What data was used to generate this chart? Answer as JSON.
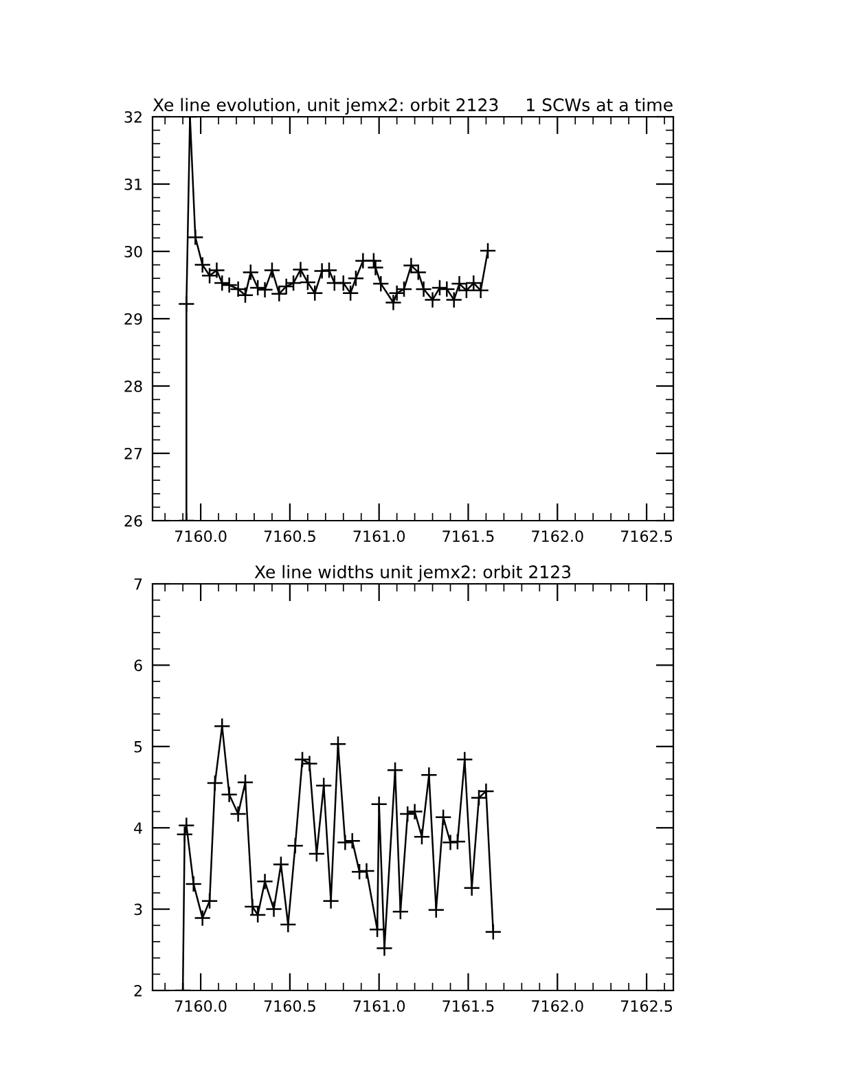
{
  "chart_data": [
    {
      "type": "line",
      "title": "Xe line evolution, unit jemx2: orbit 2123",
      "subtitle": "1 SCWs at a time",
      "marker": "cross",
      "line_style": "solid",
      "grid": false,
      "xlim": [
        7159.73,
        7162.65
      ],
      "xticks": [
        {
          "value": 7160,
          "label": "7160.0"
        },
        {
          "value": 7160.5,
          "label": "7160.5"
        },
        {
          "value": 7161,
          "label": "7161.0"
        },
        {
          "value": 7161.5,
          "label": "7161.5"
        },
        {
          "value": 7162,
          "label": "7162.0"
        },
        {
          "value": 7162.5,
          "label": "7162.5"
        }
      ],
      "ylim": [
        26,
        32
      ],
      "yticks": [
        26,
        27,
        28,
        29,
        30,
        31,
        32
      ],
      "series": [
        {
          "color": "#000000",
          "x": [
            7159.92,
            7159.92,
            7159.94,
            7159.97,
            7160.01,
            7160.05,
            7160.09,
            7160.12,
            7160.16,
            7160.21,
            7160.25,
            7160.28,
            7160.32,
            7160.36,
            7160.4,
            7160.44,
            7160.48,
            7160.52,
            7160.56,
            7160.6,
            7160.64,
            7160.68,
            7160.72,
            7160.75,
            7160.8,
            7160.84,
            7160.87,
            7160.91,
            7160.97,
            7160.98,
            7161.01,
            7161.08,
            7161.1,
            7161.14,
            7161.18,
            7161.22,
            7161.25,
            7161.3,
            7161.34,
            7161.38,
            7161.42,
            7161.45,
            7161.49,
            7161.53,
            7161.57,
            7161.61
          ],
          "values": [
            26,
            29.22,
            32,
            30.21,
            29.8,
            29.64,
            29.72,
            29.53,
            29.5,
            29.44,
            29.35,
            29.69,
            29.46,
            29.43,
            29.72,
            29.37,
            29.48,
            29.53,
            29.73,
            29.54,
            29.38,
            29.71,
            29.72,
            29.53,
            29.53,
            29.38,
            29.6,
            29.86,
            29.86,
            29.76,
            29.52,
            29.24,
            29.38,
            29.44,
            29.79,
            29.69,
            29.44,
            29.28,
            29.46,
            29.44,
            29.28,
            29.52,
            29.42,
            29.53,
            29.42,
            30.01
          ]
        }
      ]
    },
    {
      "type": "line",
      "title": "Xe line widths unit jemx2: orbit 2123",
      "marker": "cross",
      "line_style": "solid",
      "grid": false,
      "xlim": [
        7159.73,
        7162.65
      ],
      "xticks": [
        {
          "value": 7160,
          "label": "7160.0"
        },
        {
          "value": 7160.5,
          "label": "7160.5"
        },
        {
          "value": 7161,
          "label": "7161.0"
        },
        {
          "value": 7161.5,
          "label": "7161.5"
        },
        {
          "value": 7162,
          "label": "7162.0"
        },
        {
          "value": 7162.5,
          "label": "7162.5"
        }
      ],
      "ylim": [
        2,
        7
      ],
      "yticks": [
        2,
        3,
        4,
        5,
        6,
        7
      ],
      "series": [
        {
          "color": "#000000",
          "x": [
            7159.9,
            7159.91,
            7159.92,
            7159.96,
            7160.01,
            7160.05,
            7160.08,
            7160.12,
            7160.16,
            7160.21,
            7160.25,
            7160.29,
            7160.32,
            7160.36,
            7160.41,
            7160.45,
            7160.49,
            7160.53,
            7160.57,
            7160.61,
            7160.65,
            7160.69,
            7160.73,
            7160.77,
            7160.81,
            7160.85,
            7160.89,
            7160.93,
            7160.99,
            7161.0,
            7161.03,
            7161.09,
            7161.12,
            7161.16,
            7161.2,
            7161.24,
            7161.28,
            7161.32,
            7161.36,
            7161.4,
            7161.44,
            7161.48,
            7161.52,
            7161.56,
            7161.6,
            7161.64
          ],
          "values": [
            2,
            3.92,
            4.03,
            3.31,
            2.89,
            3.1,
            4.55,
            5.25,
            4.41,
            4.17,
            4.56,
            3.03,
            2.93,
            3.34,
            3.0,
            3.55,
            2.81,
            3.78,
            4.84,
            4.79,
            3.68,
            4.52,
            3.1,
            5.03,
            3.82,
            3.84,
            3.46,
            3.47,
            2.75,
            4.29,
            2.52,
            4.71,
            2.97,
            4.17,
            4.2,
            3.89,
            4.65,
            2.99,
            4.13,
            3.82,
            3.83,
            4.84,
            3.26,
            4.37,
            4.45,
            2.72
          ]
        }
      ]
    }
  ]
}
